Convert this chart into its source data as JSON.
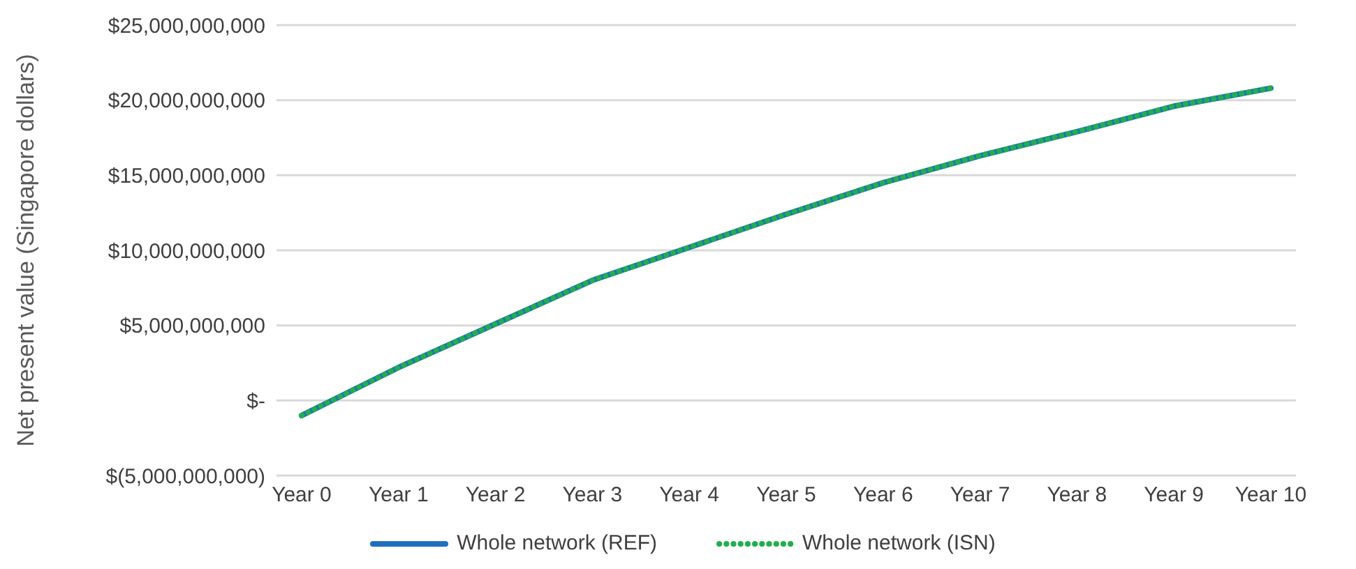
{
  "chart_data": {
    "type": "line",
    "ylabel": "Net present value (Singapore dollars)",
    "categories": [
      "Year 0",
      "Year 1",
      "Year 2",
      "Year 3",
      "Year 4",
      "Year 5",
      "Year 6",
      "Year 7",
      "Year 8",
      "Year 9",
      "Year 10"
    ],
    "series": [
      {
        "name": "Whole network (REF)",
        "color": "#1f6fc0",
        "line_style": "solid",
        "values": [
          -1000000000.0,
          2200000000.0,
          5100000000.0,
          8000000000.0,
          10200000000.0,
          12400000000.0,
          14500000000.0,
          16300000000.0,
          17900000000.0,
          19600000000.0,
          20800000000.0
        ]
      },
      {
        "name": "Whole network (ISN)",
        "color": "#1fb04a",
        "line_style": "dotted",
        "values": [
          -1000000000.0,
          2200000000.0,
          5100000000.0,
          8000000000.0,
          10200000000.0,
          12400000000.0,
          14500000000.0,
          16300000000.0,
          17900000000.0,
          19600000000.0,
          20800000000.0
        ]
      }
    ],
    "ylim": [
      -5000000000,
      25000000000
    ],
    "yticks": [
      {
        "value": -5000000000,
        "label": "$(5,000,000,000)"
      },
      {
        "value": 0,
        "label": "$-"
      },
      {
        "value": 5000000000,
        "label": "$5,000,000,000"
      },
      {
        "value": 10000000000,
        "label": "$10,000,000,000"
      },
      {
        "value": 15000000000,
        "label": "$15,000,000,000"
      },
      {
        "value": 20000000000,
        "label": "$20,000,000,000"
      },
      {
        "value": 25000000000,
        "label": "$25,000,000,000"
      }
    ],
    "grid": "y",
    "legend": "bottom",
    "marker": "none"
  }
}
